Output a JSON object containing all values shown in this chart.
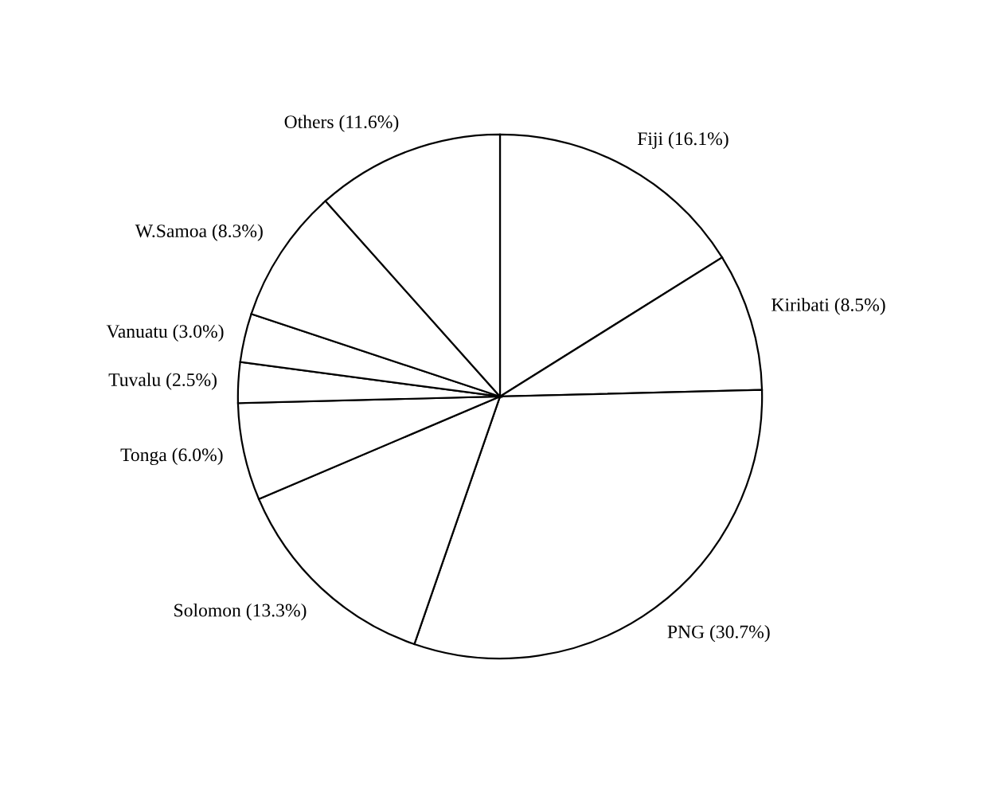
{
  "chart_data": {
    "type": "pie",
    "categories": [
      "Fiji",
      "Kiribati",
      "PNG",
      "Solomon",
      "Tonga",
      "Tuvalu",
      "Vanuatu",
      "W.Samoa",
      "Others"
    ],
    "values": [
      16.1,
      8.5,
      30.7,
      13.3,
      6.0,
      2.5,
      3.0,
      8.3,
      11.6
    ],
    "value_labels": [
      "(16.1%)",
      "(8.5%)",
      "(30.7%)",
      "(13.3%)",
      "(6.0%)",
      "(2.5%)",
      "(3.0%)",
      "(8.3%)",
      "(11.6%)"
    ],
    "colors": [
      "#ffffff",
      "#ffffff",
      "#ffffff",
      "#ffffff",
      "#ffffff",
      "#ffffff",
      "#ffffff",
      "#ffffff",
      "#ffffff"
    ],
    "legend": false
  }
}
